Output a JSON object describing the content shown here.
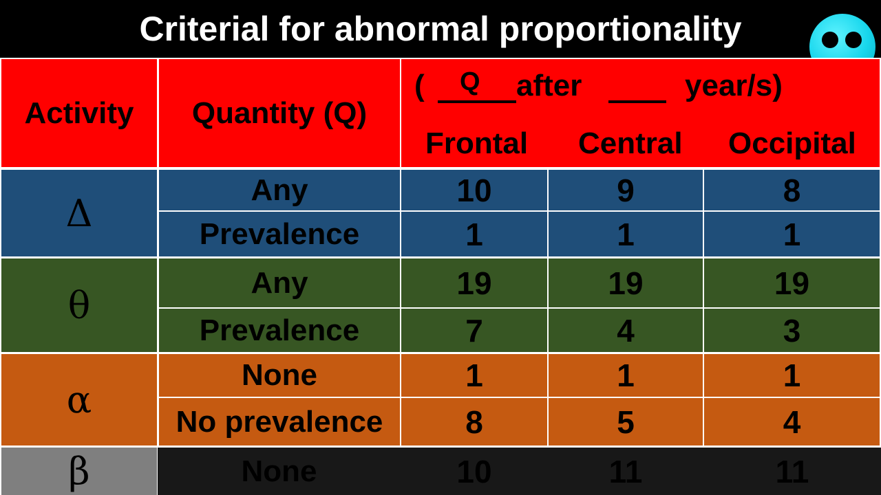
{
  "title": "Criterial for abnormal proportionality",
  "header": {
    "activity": "Activity",
    "quantity": "Quantity (Q)",
    "formula_open": "(",
    "formula_q": "Q",
    "formula_after": "after",
    "formula_years": "year/s)",
    "regions": [
      "Frontal",
      "Central",
      "Occipital"
    ]
  },
  "rows": [
    {
      "activity": "Δ",
      "color": "#1f4e79",
      "quantity": "Any",
      "values": [
        "10",
        "9",
        "8"
      ]
    },
    {
      "quantity": "Prevalence",
      "values": [
        "1",
        "1",
        "1"
      ]
    },
    {
      "activity": "θ",
      "color": "#375623",
      "quantity": "Any",
      "values": [
        "19",
        "19",
        "19"
      ]
    },
    {
      "quantity": "Prevalence",
      "values": [
        "7",
        "4",
        "3"
      ]
    },
    {
      "activity": "α",
      "color": "#c55a11",
      "quantity": "None",
      "values": [
        "1",
        "1",
        "1"
      ]
    },
    {
      "quantity": "No prevalence",
      "values": [
        "8",
        "5",
        "4"
      ]
    },
    {
      "activity": "β",
      "color": "#7f7f7f",
      "quantity": "None",
      "values": [
        "10",
        "11",
        "11"
      ]
    }
  ]
}
